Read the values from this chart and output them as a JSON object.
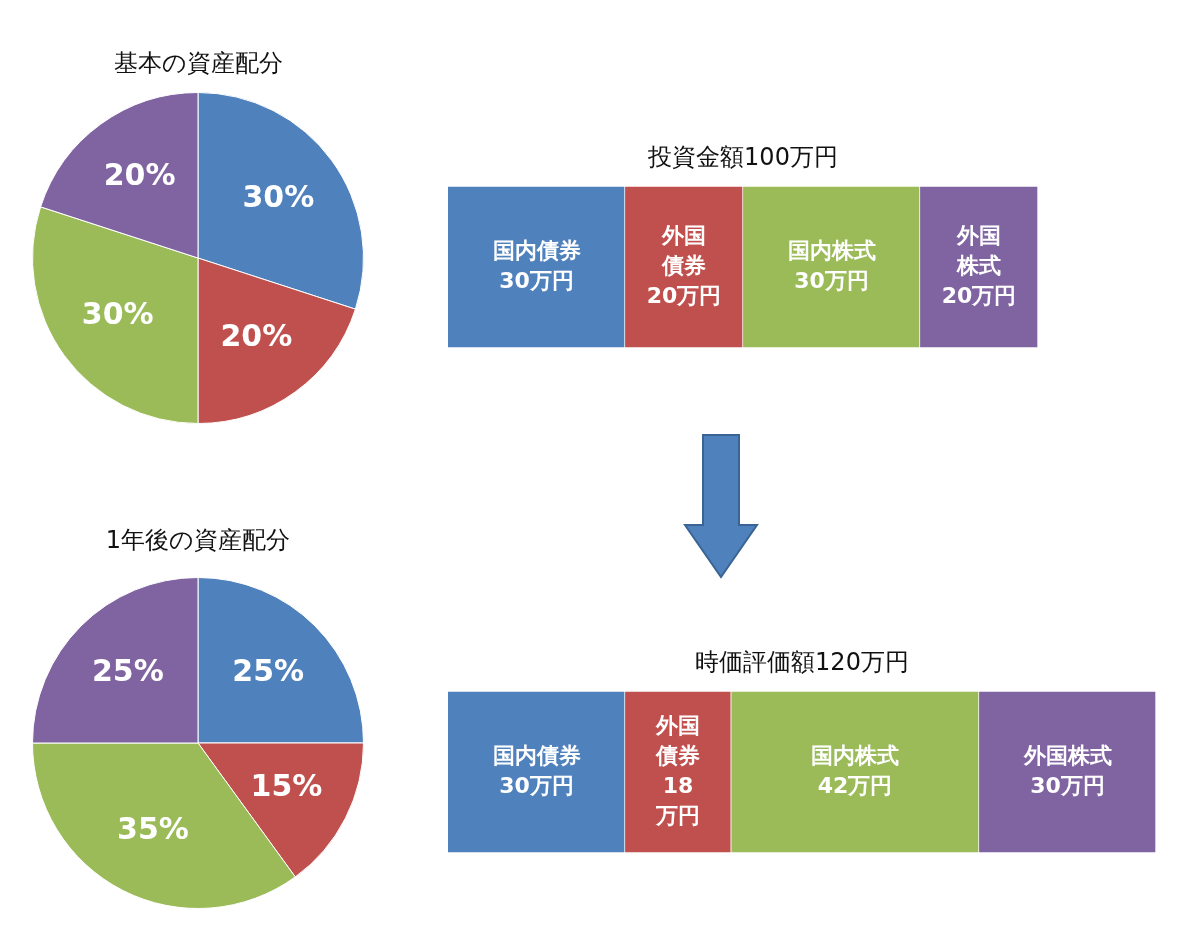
{
  "chart_data": [
    {
      "type": "pie",
      "title": "基本の資産配分",
      "categories": [
        null,
        null,
        null,
        null
      ],
      "values": [
        30,
        20,
        30,
        20
      ],
      "colors": [
        "#4f81bd",
        "#c0504d",
        "#9bbb59",
        "#8064a2"
      ],
      "value_labels": [
        "30%",
        "20%",
        "30%",
        "20%"
      ],
      "legend": false
    },
    {
      "type": "bar",
      "title": "投資金額100万円",
      "orientation": "horizontal",
      "stacked": true,
      "categories": [
        null
      ],
      "tick_labels": false,
      "legend": false,
      "series": [
        {
          "name": "国内債券",
          "color": "#4f81bd",
          "values": [
            30
          ],
          "value_labels": [
            "30万円"
          ]
        },
        {
          "name": "外国債券",
          "color": "#c0504d",
          "values": [
            20
          ],
          "value_labels": [
            "20万円"
          ]
        },
        {
          "name": "国内株式",
          "color": "#9bbb59",
          "values": [
            30
          ],
          "value_labels": [
            "30万円"
          ]
        },
        {
          "name": "外国株式",
          "color": "#8064a2",
          "values": [
            20
          ],
          "value_labels": [
            "20万円"
          ]
        }
      ]
    },
    {
      "type": "pie",
      "title": "1年後の資産配分",
      "categories": [
        null,
        null,
        null,
        null
      ],
      "values": [
        25,
        15,
        35,
        25
      ],
      "colors": [
        "#4f81bd",
        "#c0504d",
        "#9bbb59",
        "#8064a2"
      ],
      "value_labels": [
        "25%",
        "15%",
        "35%",
        "25%"
      ],
      "legend": false
    },
    {
      "type": "bar",
      "title": "時価評価額120万円",
      "orientation": "horizontal",
      "stacked": true,
      "categories": [
        null
      ],
      "tick_labels": false,
      "legend": false,
      "series": [
        {
          "name": "国内債券",
          "color": "#4f81bd",
          "values": [
            30
          ],
          "value_labels": [
            "30万円"
          ]
        },
        {
          "name": "外国債券",
          "color": "#c0504d",
          "values": [
            18
          ],
          "value_labels": [
            "18万円"
          ]
        },
        {
          "name": "国内株式",
          "color": "#9bbb59",
          "values": [
            42
          ],
          "value_labels": [
            "42万円"
          ]
        },
        {
          "name": "外国株式",
          "color": "#8064a2",
          "values": [
            30
          ],
          "value_labels": [
            "30万円"
          ]
        }
      ]
    }
  ]
}
